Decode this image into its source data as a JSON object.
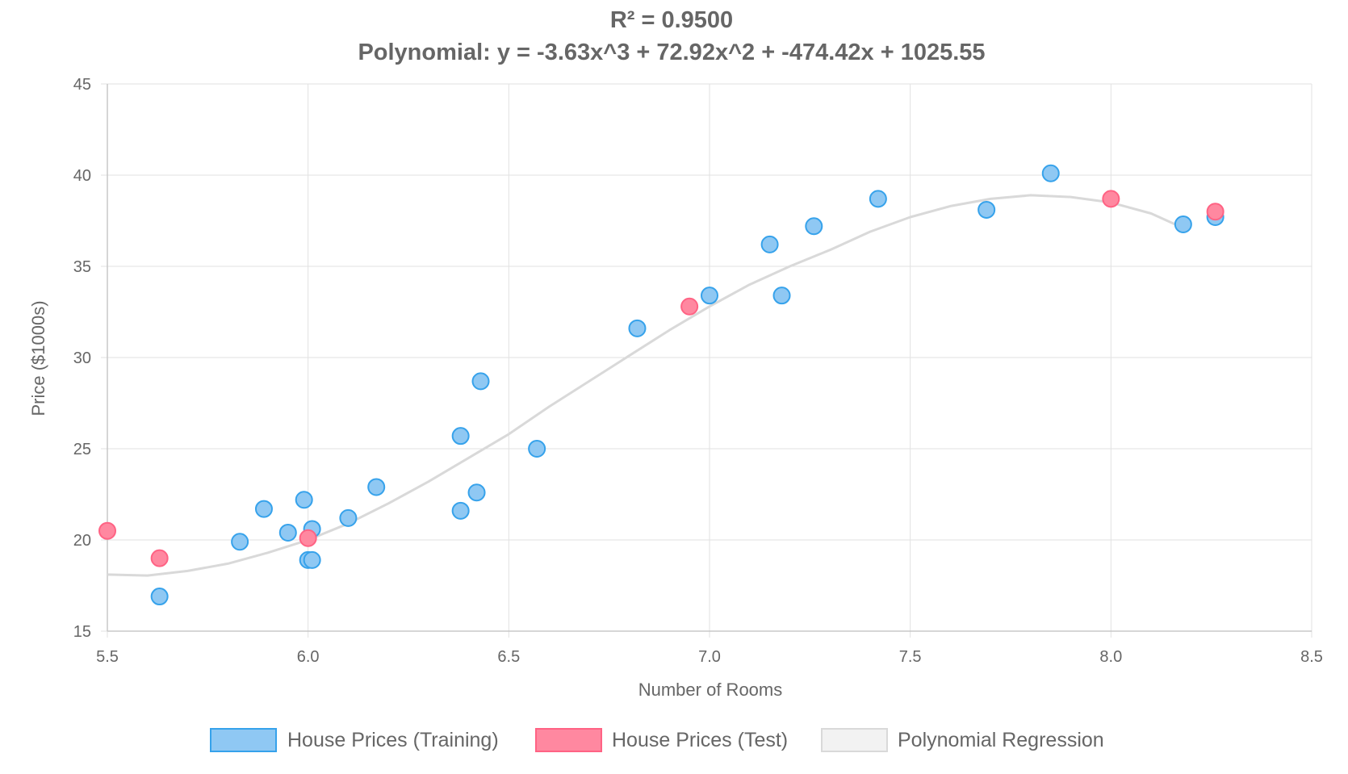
{
  "chart_data": {
    "type": "scatter",
    "title_lines": [
      "R² = 0.9500",
      "Polynomial: y = -3.63x^3 + 72.92x^2 + -474.42x + 1025.55"
    ],
    "xlabel": "Number of Rooms",
    "ylabel": "Price ($1000s)",
    "xlim": [
      5.5,
      8.5
    ],
    "ylim": [
      15,
      45
    ],
    "x_ticks": [
      "5.5",
      "6.0",
      "6.5",
      "7.0",
      "7.5",
      "8.0",
      "8.5"
    ],
    "y_ticks": [
      "15",
      "20",
      "25",
      "30",
      "35",
      "40",
      "45"
    ],
    "grid": true,
    "legend_position": "bottom",
    "series": [
      {
        "name": "House Prices (Training)",
        "kind": "scatter",
        "color": "#36a2eb",
        "fill": "#8fc8f3",
        "points": [
          {
            "x": 5.63,
            "y": 16.9
          },
          {
            "x": 5.83,
            "y": 19.9
          },
          {
            "x": 5.89,
            "y": 21.7
          },
          {
            "x": 5.95,
            "y": 20.4
          },
          {
            "x": 5.99,
            "y": 22.2
          },
          {
            "x": 6.0,
            "y": 18.9
          },
          {
            "x": 6.01,
            "y": 18.9
          },
          {
            "x": 6.01,
            "y": 20.6
          },
          {
            "x": 6.1,
            "y": 21.2
          },
          {
            "x": 6.17,
            "y": 22.9
          },
          {
            "x": 6.38,
            "y": 21.6
          },
          {
            "x": 6.38,
            "y": 25.7
          },
          {
            "x": 6.42,
            "y": 22.6
          },
          {
            "x": 6.43,
            "y": 28.7
          },
          {
            "x": 6.57,
            "y": 25.0
          },
          {
            "x": 6.82,
            "y": 31.6
          },
          {
            "x": 7.0,
            "y": 33.4
          },
          {
            "x": 7.15,
            "y": 36.2
          },
          {
            "x": 7.18,
            "y": 33.4
          },
          {
            "x": 7.26,
            "y": 37.2
          },
          {
            "x": 7.42,
            "y": 38.7
          },
          {
            "x": 7.69,
            "y": 38.1
          },
          {
            "x": 7.85,
            "y": 40.1
          },
          {
            "x": 8.18,
            "y": 37.3
          },
          {
            "x": 8.26,
            "y": 37.7
          }
        ]
      },
      {
        "name": "House Prices (Test)",
        "kind": "scatter",
        "color": "#ff6384",
        "fill": "#ff88a0",
        "points": [
          {
            "x": 5.5,
            "y": 20.5
          },
          {
            "x": 5.63,
            "y": 19.0
          },
          {
            "x": 6.0,
            "y": 20.1
          },
          {
            "x": 6.95,
            "y": 32.8
          },
          {
            "x": 8.0,
            "y": 38.7
          },
          {
            "x": 8.26,
            "y": 38.0
          }
        ]
      },
      {
        "name": "Polynomial Regression",
        "kind": "line",
        "color": "#d9d9d9",
        "fill": "#f2f2f2",
        "points": [
          {
            "x": 5.5,
            "y": 18.1
          },
          {
            "x": 5.6,
            "y": 18.05
          },
          {
            "x": 5.7,
            "y": 18.3
          },
          {
            "x": 5.8,
            "y": 18.7
          },
          {
            "x": 5.9,
            "y": 19.3
          },
          {
            "x": 6.0,
            "y": 20.0
          },
          {
            "x": 6.1,
            "y": 20.9
          },
          {
            "x": 6.2,
            "y": 22.0
          },
          {
            "x": 6.3,
            "y": 23.2
          },
          {
            "x": 6.4,
            "y": 24.5
          },
          {
            "x": 6.5,
            "y": 25.8
          },
          {
            "x": 6.6,
            "y": 27.3
          },
          {
            "x": 6.7,
            "y": 28.7
          },
          {
            "x": 6.8,
            "y": 30.1
          },
          {
            "x": 6.9,
            "y": 31.5
          },
          {
            "x": 7.0,
            "y": 32.8
          },
          {
            "x": 7.1,
            "y": 34.0
          },
          {
            "x": 7.2,
            "y": 35.0
          },
          {
            "x": 7.3,
            "y": 35.9
          },
          {
            "x": 7.4,
            "y": 36.9
          },
          {
            "x": 7.5,
            "y": 37.7
          },
          {
            "x": 7.6,
            "y": 38.3
          },
          {
            "x": 7.7,
            "y": 38.7
          },
          {
            "x": 7.8,
            "y": 38.9
          },
          {
            "x": 7.9,
            "y": 38.8
          },
          {
            "x": 8.0,
            "y": 38.5
          },
          {
            "x": 8.1,
            "y": 37.9
          },
          {
            "x": 8.18,
            "y": 37.1
          }
        ]
      }
    ]
  }
}
